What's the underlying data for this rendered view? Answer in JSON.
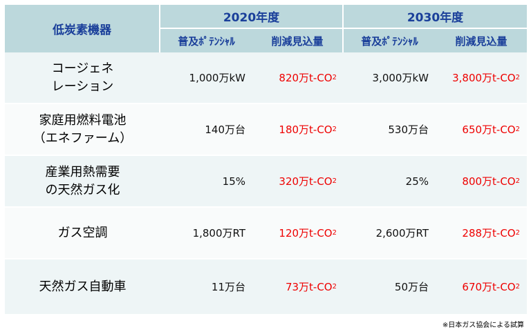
{
  "header": {
    "device_label": "低炭素機器",
    "year_2020": "2020年度",
    "year_2030": "2030年度",
    "potential_label": "普及ﾎﾟﾃﾝｼｬﾙ",
    "reduction_label": "削減見込量"
  },
  "rows": [
    {
      "name": "コージェネ\nレーション",
      "p2020": "1,000万kW",
      "r2020": "820万t-CO",
      "p2030": "3,000万kW",
      "r2030": "3,800万t-CO"
    },
    {
      "name": "家庭用燃料電池\n（エネファーム）",
      "p2020": "140万台",
      "r2020": "180万t-CO",
      "p2030": "530万台",
      "r2030": "650万t-CO"
    },
    {
      "name": "産業用熱需要\nの天然ガス化",
      "p2020": "15%",
      "r2020": "320万t-CO",
      "p2030": "25%",
      "r2030": "800万t-CO"
    },
    {
      "name": "ガス空調",
      "p2020": "1,800万RT",
      "r2020": "120万t-CO",
      "p2030": "2,600万RT",
      "r2030": "288万t-CO"
    },
    {
      "name": "天然ガス自動車",
      "p2020": "11万台",
      "r2020": "73万t-CO",
      "p2030": "50万台",
      "r2030": "670万t-CO"
    }
  ],
  "subscript": "2",
  "footnote": "※日本ガス協会による試算",
  "colors": {
    "header_bg": "#bcd8dc",
    "header_text": "#1a3f9a",
    "reduction_text": "#ee0000"
  }
}
